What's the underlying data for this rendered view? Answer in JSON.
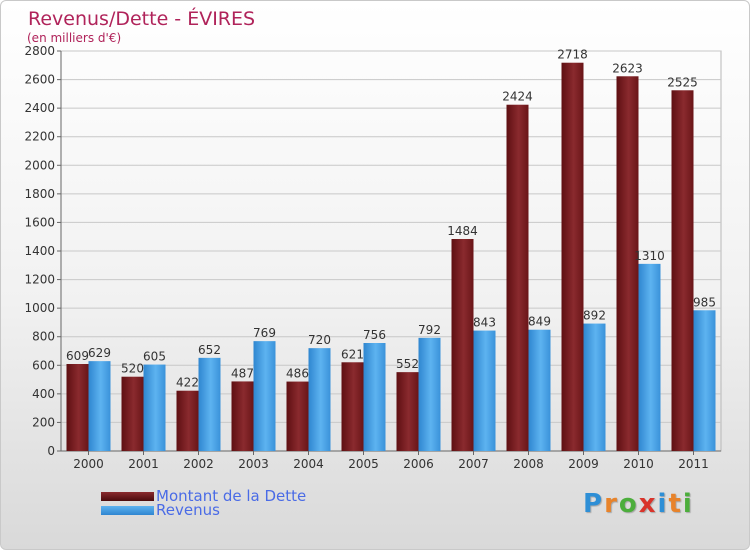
{
  "title": "Revenus/Dette - ÉVIRES",
  "subtitle": "(en milliers d'€)",
  "logo": {
    "letters": [
      "P",
      "r",
      "o",
      "x",
      "i",
      "t",
      "i"
    ],
    "colors": [
      "#2e8fd6",
      "#e8832a",
      "#4cae3c",
      "#d9342b",
      "#2e8fd6",
      "#e8832a",
      "#4cae3c"
    ]
  },
  "chart_data": {
    "type": "bar",
    "categories": [
      "2000",
      "2001",
      "2002",
      "2003",
      "2004",
      "2005",
      "2006",
      "2007",
      "2008",
      "2009",
      "2010",
      "2011"
    ],
    "series": [
      {
        "name": "Montant de la Dette",
        "color": "#7a1e22",
        "values": [
          609,
          520,
          422,
          487,
          486,
          621,
          552,
          1484,
          2424,
          2718,
          2623,
          2525
        ]
      },
      {
        "name": "Revenus",
        "color": "#4aa3e6",
        "values": [
          629,
          605,
          652,
          769,
          720,
          756,
          792,
          843,
          849,
          892,
          1310,
          985
        ]
      }
    ],
    "yticks": [
      0,
      200,
      400,
      600,
      800,
      1000,
      1200,
      1400,
      1600,
      1800,
      2000,
      2200,
      2400,
      2600,
      2800
    ],
    "ylim": [
      0,
      2800
    ],
    "grid": true,
    "legend_position": "bottom-left"
  }
}
